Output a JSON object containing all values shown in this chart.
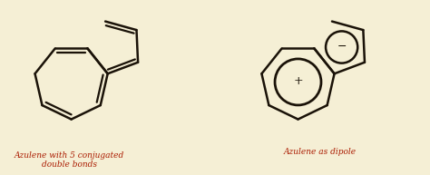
{
  "bg_color": "#f5efd5",
  "line_color": "#1a1208",
  "text_color": "#aa1a00",
  "label1": "Azulene with 5 conjugated\ndouble bonds",
  "label2": "Azulene as dipole",
  "plus": "+",
  "minus": "−",
  "lw": 1.8
}
